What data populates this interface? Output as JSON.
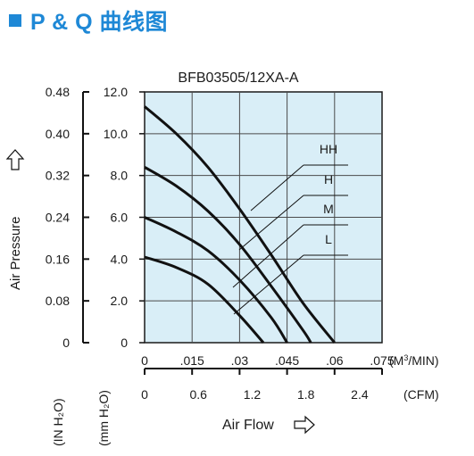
{
  "header": {
    "title": "P & Q 曲线图",
    "accent_color": "#1e88d6",
    "icon": "blue-square-bullet"
  },
  "chart_data": {
    "type": "line",
    "title": "BFB03505/12XA-A",
    "plot_background": "#d9eef7",
    "grid": true,
    "xlabel": "Air Flow",
    "xlabel_icon": "right-arrow-outline",
    "x_axis_primary": {
      "unit": "(M³/MIN)",
      "unit_base": "(M",
      "unit_sup": "3",
      "unit_tail": "/MIN)",
      "ticks": [
        "0",
        ".015",
        ".03",
        ".045",
        ".06",
        ".075"
      ],
      "range": [
        0,
        0.075
      ]
    },
    "x_axis_secondary": {
      "unit": "(CFM)",
      "ticks": [
        "0",
        "0.6",
        "1.2",
        "1.8",
        "2.4"
      ],
      "range": [
        0,
        2.65
      ]
    },
    "ylabel": "Air Pressure",
    "ylabel_icon": "up-arrow-outline",
    "y_axis_left": {
      "unit": "(IN H₂O)",
      "ticks": [
        "0",
        "0.08",
        "0.16",
        "0.24",
        "0.32",
        "0.40",
        "0.48"
      ],
      "range": [
        0,
        0.48
      ]
    },
    "y_axis_right": {
      "unit": "(mm H₂O)",
      "ticks": [
        "0",
        "2.0",
        "4.0",
        "6.0",
        "8.0",
        "10.0",
        "12.0"
      ],
      "range": [
        0,
        12
      ]
    },
    "series": [
      {
        "name": "HH",
        "x": [
          0,
          0.01,
          0.02,
          0.03,
          0.04,
          0.05,
          0.06
        ],
        "y": [
          11.3,
          10.0,
          8.4,
          6.4,
          4.2,
          1.9,
          0
        ]
      },
      {
        "name": "H",
        "x": [
          0,
          0.01,
          0.02,
          0.03,
          0.04,
          0.05,
          0.0525
        ],
        "y": [
          8.4,
          7.5,
          6.3,
          4.7,
          2.7,
          0.6,
          0
        ]
      },
      {
        "name": "M",
        "x": [
          0,
          0.01,
          0.02,
          0.03,
          0.04,
          0.045
        ],
        "y": [
          6.0,
          5.3,
          4.4,
          3.0,
          1.2,
          0
        ]
      },
      {
        "name": "L",
        "x": [
          0,
          0.01,
          0.02,
          0.03,
          0.0375
        ],
        "y": [
          4.1,
          3.6,
          2.8,
          1.3,
          0
        ]
      }
    ]
  }
}
